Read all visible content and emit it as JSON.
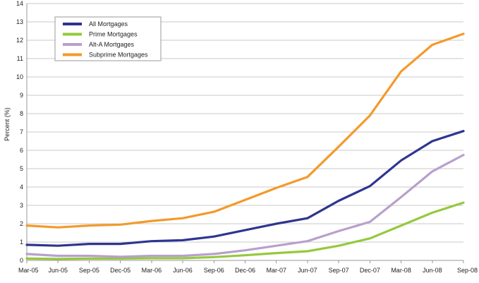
{
  "chart_data": {
    "type": "line",
    "title": "",
    "xlabel": "",
    "ylabel": "Percent (%)",
    "ylim": [
      0,
      14
    ],
    "yticks": [
      0,
      1,
      2,
      3,
      4,
      5,
      6,
      7,
      8,
      9,
      10,
      11,
      12,
      13,
      14
    ],
    "grid": "horizontal",
    "legend_position": "top-left",
    "categories": [
      "Mar-05",
      "Jun-05",
      "Sep-05",
      "Dec-05",
      "Mar-06",
      "Jun-06",
      "Sep-06",
      "Dec-06",
      "Mar-07",
      "Jun-07",
      "Sep-07",
      "Dec-07",
      "Mar-08",
      "Jun-08",
      "Sep-08"
    ],
    "series": [
      {
        "name": "All Mortgages",
        "color": "#2e3590",
        "values": [
          0.85,
          0.8,
          0.9,
          0.9,
          1.05,
          1.1,
          1.3,
          1.65,
          2.0,
          2.3,
          3.25,
          4.05,
          5.45,
          6.5,
          7.05
        ]
      },
      {
        "name": "Prime Mortgages",
        "color": "#95c93d",
        "values": [
          0.1,
          0.08,
          0.1,
          0.1,
          0.12,
          0.12,
          0.18,
          0.28,
          0.4,
          0.5,
          0.8,
          1.2,
          1.9,
          2.6,
          3.15
        ]
      },
      {
        "name": "Alt-A Mortgages",
        "color": "#b8a0cc",
        "values": [
          0.35,
          0.25,
          0.25,
          0.2,
          0.25,
          0.25,
          0.35,
          0.55,
          0.8,
          1.05,
          1.6,
          2.1,
          3.45,
          4.85,
          5.75
        ]
      },
      {
        "name": "Subprime Mortgages",
        "color": "#f39a2b",
        "values": [
          1.9,
          1.8,
          1.9,
          1.95,
          2.15,
          2.3,
          2.65,
          3.3,
          3.95,
          4.55,
          6.2,
          7.9,
          10.3,
          11.75,
          12.35
        ]
      }
    ]
  }
}
